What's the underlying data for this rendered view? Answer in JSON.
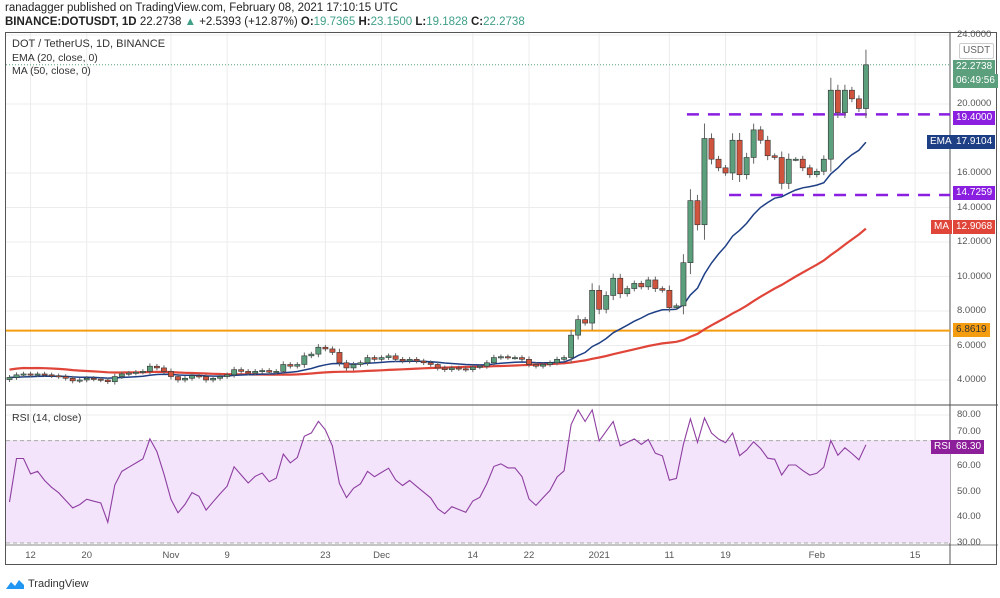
{
  "header": {
    "published": "ranadagger published on TradingView.com, February 08, 2021 17:10:15 UTC",
    "symbol": "BINANCE:DOTUSDT, 1D",
    "last": "22.2738",
    "change": "+2.5393 (+12.87%)",
    "o_label": "O:",
    "o": "19.7365",
    "h_label": "H:",
    "h": "23.1500",
    "l_label": "L:",
    "l": "19.1828",
    "c_label": "C:",
    "c": "22.2738"
  },
  "legend": {
    "title": "DOT / TetherUS, 1D, BINANCE",
    "ema": "EMA (20, close, 0)",
    "ma": "MA (50, close, 0)",
    "rsi": "RSI (14, close)"
  },
  "tags": {
    "currency": "USDT",
    "price": "22.2738",
    "countdown": "06:49:56",
    "resistance": "19.4000",
    "ema_name": "EMA",
    "ema_value": "17.9104",
    "support": "14.7259",
    "ma_name": "MA",
    "ma_value": "12.9068",
    "orange_level": "6.8619",
    "rsi_name": "RSI",
    "rsi_value": "68.30"
  },
  "colors": {
    "up": "#5b9f7c",
    "down": "#d0533e",
    "ema": "#1f3f85",
    "ma": "#e0453a",
    "level_purple": "#8a1fe0",
    "level_orange": "#f59d10",
    "rsi": "#8e3fa0",
    "rsi_band": "#f3e4fc"
  },
  "branding": "TradingView",
  "chart_data": {
    "type": "candlestick",
    "title": "DOT / TetherUS, 1D, BINANCE",
    "start_date": "2020-10-09",
    "end_date": "2021-02-08",
    "close": [
      4.15,
      4.3,
      4.35,
      4.3,
      4.35,
      4.3,
      4.25,
      4.2,
      4.1,
      3.95,
      4.0,
      4.1,
      4.05,
      4.0,
      3.9,
      4.2,
      4.35,
      4.4,
      4.45,
      4.5,
      4.8,
      4.7,
      4.5,
      4.2,
      4.0,
      4.1,
      4.25,
      4.2,
      4.0,
      4.1,
      4.2,
      4.3,
      4.6,
      4.5,
      4.4,
      4.5,
      4.55,
      4.45,
      4.5,
      4.9,
      4.8,
      4.9,
      5.4,
      5.5,
      5.9,
      5.8,
      5.6,
      5.0,
      4.7,
      4.9,
      5.0,
      5.3,
      5.2,
      5.3,
      5.4,
      5.2,
      5.1,
      5.2,
      5.1,
      5.0,
      4.9,
      4.7,
      4.6,
      4.7,
      4.65,
      4.6,
      4.75,
      4.8,
      5.0,
      5.3,
      5.35,
      5.3,
      5.3,
      5.2,
      4.9,
      4.8,
      4.9,
      5.0,
      5.2,
      5.3,
      6.6,
      7.5,
      7.3,
      9.2,
      8.1,
      8.9,
      9.9,
      9.0,
      9.3,
      9.6,
      9.4,
      9.8,
      9.3,
      9.2,
      8.2,
      8.3,
      10.8,
      14.4,
      13.0,
      18.0,
      16.8,
      16.3,
      16.0,
      17.9,
      15.9,
      16.9,
      18.5,
      17.9,
      17.0,
      16.9,
      15.4,
      16.8,
      16.8,
      16.3,
      15.9,
      16.1,
      16.8,
      20.8,
      19.5,
      20.8,
      20.3,
      19.74,
      22.27
    ],
    "last_candle": {
      "open": 19.7365,
      "high": 23.15,
      "low": 19.1828,
      "close": 22.2738
    },
    "indicators": {
      "ema20_last": 17.9104,
      "ma50_last": 12.9068,
      "rsi14_last": 68.3
    },
    "horizontal_levels": [
      19.4,
      14.7259,
      6.8619
    ],
    "y_ticks": [
      "4.0000",
      "6.0000",
      "8.0000",
      "10.0000",
      "12.0000",
      "14.0000",
      "16.0000",
      "20.0000",
      "24.0000"
    ],
    "y_tick_values": [
      4,
      6,
      8,
      10,
      12,
      14,
      16,
      20,
      24
    ],
    "rsi_ticks": [
      "80.00",
      "70.00",
      "60.00",
      "50.00",
      "40.00",
      "30.00"
    ],
    "rsi_tick_values": [
      80,
      70,
      60,
      50,
      40,
      30
    ],
    "x_ticks": [
      {
        "label": "12",
        "day": 3
      },
      {
        "label": "20",
        "day": 11
      },
      {
        "label": "Nov",
        "day": 23
      },
      {
        "label": "9",
        "day": 31
      },
      {
        "label": "23",
        "day": 45
      },
      {
        "label": "Dec",
        "day": 53
      },
      {
        "label": "14",
        "day": 66
      },
      {
        "label": "22",
        "day": 74
      },
      {
        "label": "2021",
        "day": 84
      },
      {
        "label": "11",
        "day": 94
      },
      {
        "label": "19",
        "day": 102
      },
      {
        "label": "Feb",
        "day": 115
      },
      {
        "label": "15",
        "day": 129
      }
    ]
  }
}
